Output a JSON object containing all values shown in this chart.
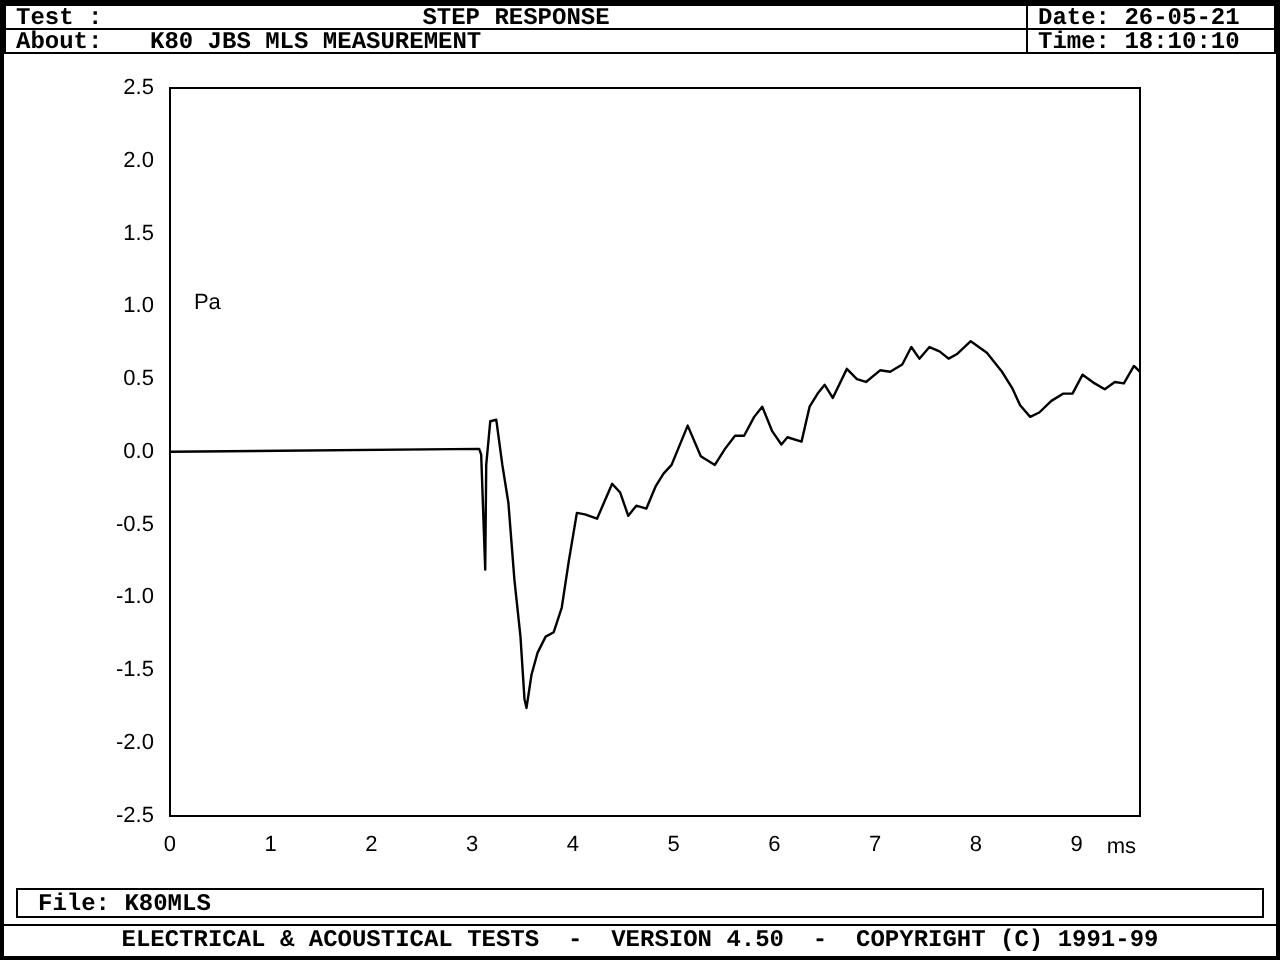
{
  "chart_data": {
    "type": "line",
    "title": "STEP RESPONSE",
    "xlabel": "ms",
    "ylabel": "Pa",
    "annotations": [
      "Test :",
      "About:",
      "K80 JBS MLS MEASUREMENT",
      "Date: 26-05-21",
      "Time: 18:10:10",
      "File: K80MLS",
      "ELECTRICAL & ACOUSTICAL TESTS  -  VERSION 4.50  -  COPYRIGHT (C) 1991-99"
    ],
    "x": [
      0,
      3.07,
      3.09,
      3.13,
      3.14,
      3.18,
      3.24,
      3.3,
      3.36,
      3.42,
      3.48,
      3.52,
      3.54,
      3.59,
      3.65,
      3.73,
      3.81,
      3.89,
      3.96,
      4.04,
      4.12,
      4.24,
      4.39,
      4.47,
      4.55,
      4.63,
      4.73,
      4.82,
      4.9,
      4.98,
      5.14,
      5.27,
      5.41,
      5.51,
      5.61,
      5.7,
      5.8,
      5.88,
      5.98,
      6.07,
      6.13,
      6.27,
      6.35,
      6.43,
      6.5,
      6.58,
      6.72,
      6.82,
      6.91,
      7.05,
      7.15,
      7.27,
      7.36,
      7.44,
      7.54,
      7.64,
      7.73,
      7.81,
      7.95,
      8.11,
      8.26,
      8.36,
      8.44,
      8.54,
      8.63,
      8.75,
      8.87,
      8.96,
      9.06,
      9.18,
      9.28,
      9.38,
      9.47,
      9.57,
      9.63
    ],
    "series": [
      {
        "color": "#000000",
        "values": [
          0,
          0.02,
          -0.02,
          -0.81,
          -0.09,
          0.21,
          0.22,
          -0.09,
          -0.35,
          -0.88,
          -1.27,
          -1.7,
          -1.76,
          -1.53,
          -1.38,
          -1.27,
          -1.24,
          -1.07,
          -0.75,
          -0.42,
          -0.43,
          -0.46,
          -0.22,
          -0.28,
          -0.44,
          -0.37,
          -0.39,
          -0.24,
          -0.15,
          -0.09,
          0.18,
          -0.03,
          -0.09,
          0.02,
          0.11,
          0.11,
          0.24,
          0.31,
          0.14,
          0.05,
          0.1,
          0.07,
          0.31,
          0.4,
          0.46,
          0.37,
          0.57,
          0.5,
          0.48,
          0.56,
          0.55,
          0.6,
          0.72,
          0.64,
          0.72,
          0.69,
          0.64,
          0.67,
          0.76,
          0.68,
          0.55,
          0.44,
          0.32,
          0.24,
          0.27,
          0.35,
          0.4,
          0.4,
          0.53,
          0.47,
          0.43,
          0.48,
          0.47,
          0.59,
          0.55
        ]
      }
    ],
    "xlim": [
      0,
      9.63
    ],
    "xticks": [
      0,
      1,
      2,
      3,
      4,
      5,
      6,
      7,
      8,
      9
    ],
    "ylim": [
      -2.5,
      2.5
    ],
    "yticks": [
      -2.5,
      {
        "value": -2,
        "label": "-2.0"
      },
      -1.5,
      {
        "value": -1,
        "label": "-1.0"
      },
      -0.5,
      {
        "value": 0,
        "label": "0.0"
      },
      0.5,
      {
        "value": 1,
        "label": "1.0"
      },
      1.5,
      {
        "value": 2,
        "label": "2.0"
      },
      2.5
    ],
    "grid": false,
    "legend": false,
    "marker": "none",
    "line_style": "solid"
  }
}
